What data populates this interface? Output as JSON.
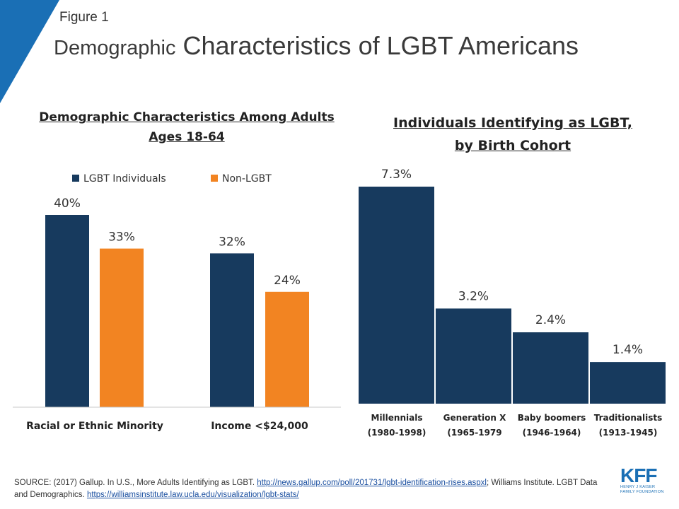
{
  "figure_label": "Figure 1",
  "title_part1": "Demographic",
  "title_part2": "Characteristics of LGBT Americans",
  "colors": {
    "lgbt": "#173a5e",
    "non_lgbt": "#f28422",
    "cohort": "#173a5e",
    "corner": "#1a6fb5"
  },
  "chart_data": [
    {
      "type": "bar",
      "title": "Demographic Characteristics Among Adults Ages 18-64",
      "title_line1": "Demographic Characteristics Among Adults",
      "title_line2": "Ages 18-64",
      "categories": [
        "Racial or Ethnic Minority",
        "Income <$24,000"
      ],
      "series": [
        {
          "name": "LGBT Individuals",
          "values": [
            40,
            32
          ],
          "labels": [
            "40%",
            "32%"
          ]
        },
        {
          "name": "Non-LGBT",
          "values": [
            33,
            24
          ],
          "labels": [
            "33%",
            "24%"
          ]
        }
      ],
      "legend_position": "top",
      "ylim": [
        0,
        40
      ]
    },
    {
      "type": "bar",
      "title": "Individuals Identifying as LGBT, by Birth Cohort",
      "title_line1": "Individuals Identifying as LGBT,",
      "title_line2": "by Birth Cohort",
      "categories": [
        "Millennials",
        "Generation X",
        "Baby boomers",
        "Traditionalists"
      ],
      "category_years": [
        "(1980-1998)",
        "(1965-1979",
        "(1946-1964)",
        "(1913-1945)"
      ],
      "values": [
        7.3,
        3.2,
        2.4,
        1.4
      ],
      "labels": [
        "7.3%",
        "3.2%",
        "2.4%",
        "1.4%"
      ],
      "ylim": [
        0,
        7.3
      ]
    }
  ],
  "source": {
    "label": "SOURCE",
    "text1": ": (2017)  Gallup. In U.S., More Adults Identifying as LGBT.",
    "link1": "http://news.gallup.com/poll/201731/lgbt-identification-rises.aspxl",
    "text2": ";  Williams Institute. LGBT Data and Demographics.",
    "link2": "https://williamsinstitute.law.ucla.edu/visualization/lgbt-stats/"
  },
  "logo": {
    "text": "KFF",
    "line1": "HENRY J KAISER",
    "line2": "FAMILY FOUNDATION"
  }
}
